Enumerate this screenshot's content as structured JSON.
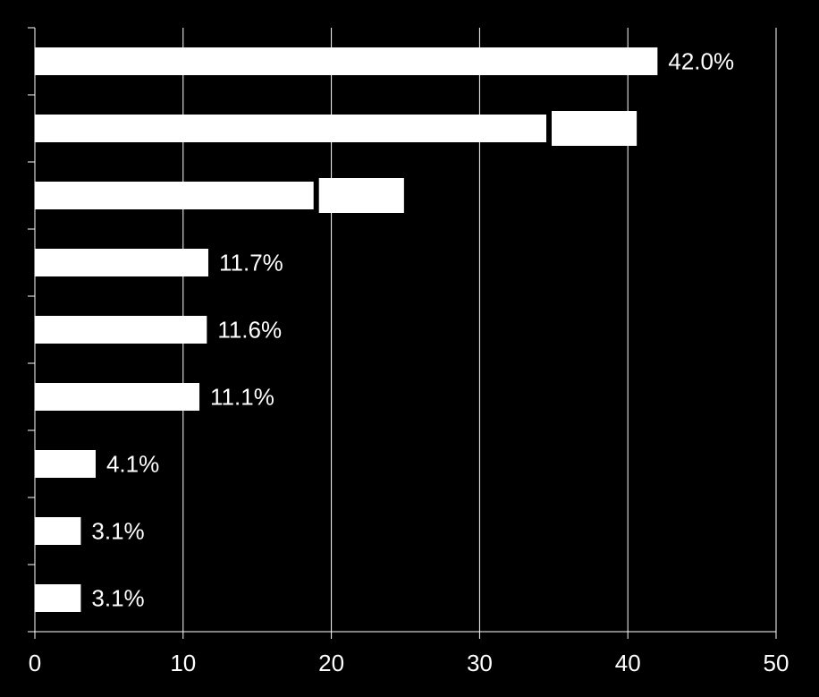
{
  "chart_data": {
    "type": "bar",
    "orientation": "horizontal",
    "categories": [
      "",
      "",
      "",
      "",
      "",
      "",
      "",
      "",
      ""
    ],
    "values": [
      42.0,
      34.5,
      18.8,
      11.7,
      11.6,
      11.1,
      4.1,
      3.1,
      3.1
    ],
    "data_labels": [
      "42.0%",
      "",
      "",
      "11.7%",
      "11.6%",
      "11.1%",
      "4.1%",
      "3.1%",
      "3.1%"
    ],
    "label_boxes": [
      null,
      40.6,
      24.9,
      null,
      null,
      null,
      null,
      null,
      null
    ],
    "xlim": [
      0,
      50
    ],
    "x_ticks": [
      "0",
      "10",
      "20",
      "30",
      "40",
      "50"
    ],
    "grid": true,
    "colors": {
      "background": "#000000",
      "bar": "#ffffff",
      "grid": "#ffffff",
      "text": "#ffffff"
    }
  }
}
